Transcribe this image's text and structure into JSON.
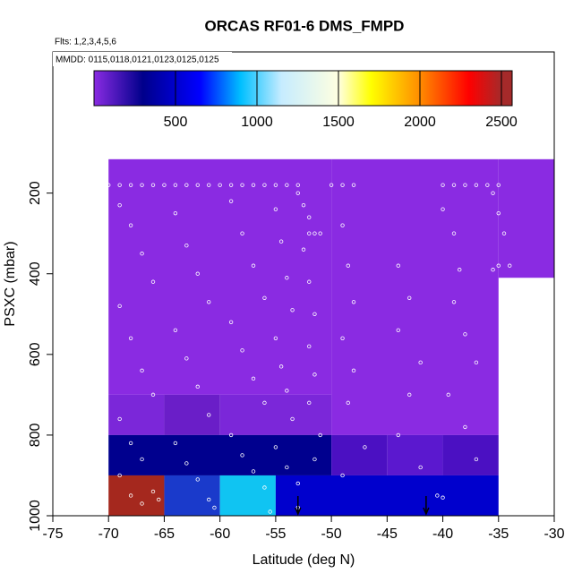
{
  "chart_data": {
    "type": "heatmap",
    "title": "ORCAS RF01-6 DMS_FMPD",
    "subtitle": "Flts: 1,2,3,4,5,6",
    "annotation": "MMDD: 0115,0118,0121,0123,0125,0125",
    "x_label": "Latitude (deg N)",
    "y_label": "PSXC (mbar)",
    "xlim": [
      -75,
      -30
    ],
    "ylim": [
      1000,
      -150
    ],
    "xticks": [
      -75,
      -70,
      -65,
      -60,
      -55,
      -50,
      -45,
      -40,
      -35,
      -30
    ],
    "yticks": [
      200,
      400,
      600,
      800,
      1000
    ],
    "colorbar": {
      "lim": [
        0,
        2566
      ],
      "ticks": [
        500,
        1000,
        1500,
        2000,
        2500
      ],
      "stops": [
        {
          "value": 0,
          "color": "#8a2be2"
        },
        {
          "value": 300,
          "color": "#00008b"
        },
        {
          "value": 650,
          "color": "#0000ff"
        },
        {
          "value": 900,
          "color": "#00bfff"
        },
        {
          "value": 1150,
          "color": "#c6ecff"
        },
        {
          "value": 1500,
          "color": "#ffffe0"
        },
        {
          "value": 1700,
          "color": "#ffff00"
        },
        {
          "value": 2000,
          "color": "#ff8c00"
        },
        {
          "value": 2300,
          "color": "#ff0000"
        },
        {
          "value": 2500,
          "color": "#a52a2a"
        }
      ]
    },
    "cells": [
      {
        "x": [
          -70,
          -50
        ],
        "y": [
          116,
          700
        ],
        "value": 60,
        "color": "#8a2be2"
      },
      {
        "x": [
          -50,
          -35
        ],
        "y": [
          116,
          800
        ],
        "value": 60,
        "color": "#8a2be2"
      },
      {
        "x": [
          -35,
          -30
        ],
        "y": [
          116,
          410
        ],
        "value": 60,
        "color": "#8a2be2"
      },
      {
        "x": [
          -70,
          -65
        ],
        "y": [
          700,
          800
        ],
        "value": 90,
        "color": "#7b27d9"
      },
      {
        "x": [
          -65,
          -60
        ],
        "y": [
          700,
          800
        ],
        "value": 130,
        "color": "#6a1ec8"
      },
      {
        "x": [
          -60,
          -50
        ],
        "y": [
          700,
          800
        ],
        "value": 90,
        "color": "#7b27d9"
      },
      {
        "x": [
          -70,
          -50
        ],
        "y": [
          800,
          900
        ],
        "value": 380,
        "color": "#00008e"
      },
      {
        "x": [
          -50,
          -45
        ],
        "y": [
          800,
          900
        ],
        "value": 180,
        "color": "#4b10c2"
      },
      {
        "x": [
          -45,
          -40
        ],
        "y": [
          800,
          900
        ],
        "value": 140,
        "color": "#5b18cf"
      },
      {
        "x": [
          -40,
          -35
        ],
        "y": [
          800,
          900
        ],
        "value": 180,
        "color": "#4b10c2"
      },
      {
        "x": [
          -70,
          -65
        ],
        "y": [
          900,
          1000
        ],
        "value": 2480,
        "color": "#a5281e"
      },
      {
        "x": [
          -65,
          -60
        ],
        "y": [
          900,
          1000
        ],
        "value": 700,
        "color": "#1a3acb"
      },
      {
        "x": [
          -60,
          -55
        ],
        "y": [
          900,
          1000
        ],
        "value": 1020,
        "color": "#10c4f2"
      },
      {
        "x": [
          -55,
          -35
        ],
        "y": [
          900,
          1000
        ],
        "value": 560,
        "color": "#0000cd"
      }
    ],
    "scatter": {
      "x": [
        -70,
        -69,
        -68,
        -67,
        -66,
        -65,
        -64,
        -63,
        -62,
        -61,
        -60,
        -59,
        -58,
        -57,
        -56,
        -55,
        -54,
        -53,
        -50,
        -49,
        -48,
        -40,
        -39,
        -38,
        -37,
        -36,
        -35,
        -53,
        -52.5,
        -52,
        -51.5,
        -52,
        -51,
        -69,
        -68,
        -67,
        -66,
        -69,
        -68,
        -67,
        -66,
        -69,
        -68,
        -67,
        -69,
        -68,
        -67,
        -66,
        -65.5,
        -64,
        -63,
        -62,
        -61,
        -64,
        -63,
        -62,
        -61,
        -64,
        -63,
        -62,
        -61,
        -60.5,
        -59,
        -58,
        -57,
        -56,
        -59,
        -58,
        -57,
        -56,
        -59,
        -58,
        -57,
        -56,
        -55.5,
        -55,
        -54.5,
        -54,
        -53.5,
        -55,
        -54.5,
        -54,
        -53.5,
        -55,
        -54,
        -53,
        -53,
        -52.5,
        -52,
        -51.5,
        -52,
        -51.5,
        -52,
        -51,
        -51.5,
        -49,
        -48.5,
        -48,
        -49,
        -48,
        -48.5,
        -47,
        -49,
        -44,
        -43,
        -44,
        -42,
        -43,
        -44,
        -42,
        -40,
        -39,
        -38.5,
        -39,
        -38,
        -37,
        -39.5,
        -38,
        -37,
        -40.5,
        -40,
        -35.5,
        -35,
        -34.5,
        -35,
        -34,
        -35.5
      ],
      "y": [
        180,
        180,
        180,
        180,
        180,
        180,
        180,
        180,
        180,
        180,
        180,
        180,
        180,
        180,
        180,
        180,
        180,
        180,
        180,
        180,
        180,
        180,
        180,
        180,
        180,
        180,
        180,
        200,
        230,
        260,
        300,
        300,
        300,
        230,
        280,
        350,
        420,
        480,
        560,
        640,
        700,
        760,
        820,
        860,
        900,
        950,
        970,
        940,
        960,
        250,
        330,
        400,
        470,
        540,
        610,
        680,
        750,
        820,
        870,
        910,
        960,
        980,
        220,
        300,
        380,
        460,
        520,
        590,
        660,
        720,
        800,
        850,
        890,
        930,
        990,
        240,
        320,
        410,
        490,
        560,
        630,
        690,
        760,
        830,
        880,
        920,
        980,
        340,
        420,
        500,
        580,
        650,
        720,
        800,
        860,
        280,
        380,
        470,
        560,
        640,
        720,
        830,
        900,
        380,
        460,
        540,
        620,
        700,
        800,
        880,
        240,
        300,
        390,
        470,
        550,
        620,
        700,
        780,
        860,
        950,
        955,
        200,
        250,
        300,
        380,
        380,
        390
      ],
      "color": "#ffffff"
    },
    "arrows_x": [
      -53,
      -41.5
    ]
  }
}
